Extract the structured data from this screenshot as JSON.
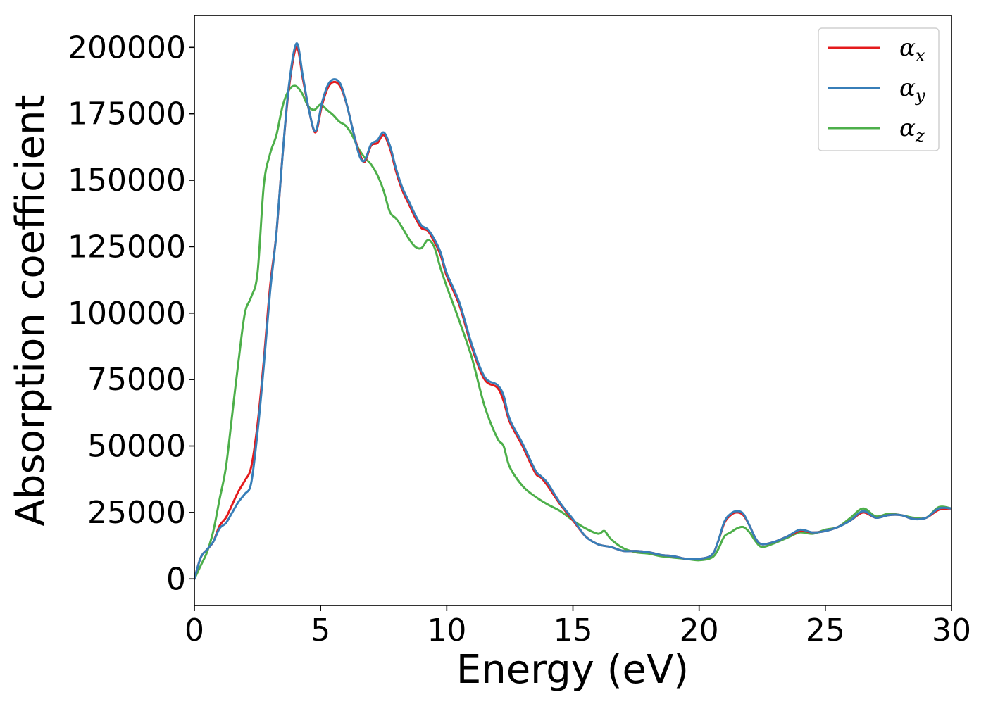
{
  "chart_data": {
    "type": "line",
    "title": "",
    "xlabel": "Energy (eV)",
    "ylabel": "Absorption coefficient",
    "xlim": [
      0,
      30
    ],
    "ylim": [
      -10000,
      212000
    ],
    "xticks": [
      0,
      5,
      10,
      15,
      20,
      25,
      30
    ],
    "yticks": [
      0,
      25000,
      50000,
      75000,
      100000,
      125000,
      150000,
      175000,
      200000
    ],
    "grid": false,
    "legend_position": "top-right",
    "series": [
      {
        "name": "α_x",
        "legend_base": "α",
        "legend_sub": "x",
        "color": "#e41a1c",
        "points": [
          [
            0,
            0
          ],
          [
            0.25,
            8000
          ],
          [
            0.5,
            11000
          ],
          [
            0.75,
            14000
          ],
          [
            1,
            20000
          ],
          [
            1.25,
            23000
          ],
          [
            1.5,
            28000
          ],
          [
            1.75,
            33000
          ],
          [
            2,
            37000
          ],
          [
            2.25,
            42000
          ],
          [
            2.5,
            58000
          ],
          [
            2.75,
            82000
          ],
          [
            3,
            110000
          ],
          [
            3.25,
            130000
          ],
          [
            3.5,
            160000
          ],
          [
            3.75,
            185000
          ],
          [
            4.05,
            200000
          ],
          [
            4.3,
            188000
          ],
          [
            4.55,
            176000
          ],
          [
            4.8,
            168000
          ],
          [
            5.05,
            178000
          ],
          [
            5.3,
            185000
          ],
          [
            5.55,
            187000
          ],
          [
            5.8,
            185000
          ],
          [
            6.05,
            178000
          ],
          [
            6.3,
            168000
          ],
          [
            6.55,
            160000
          ],
          [
            6.75,
            157000
          ],
          [
            7,
            163000
          ],
          [
            7.25,
            164000
          ],
          [
            7.5,
            167000
          ],
          [
            7.75,
            162000
          ],
          [
            8,
            153000
          ],
          [
            8.25,
            146000
          ],
          [
            8.5,
            141000
          ],
          [
            8.75,
            136000
          ],
          [
            9,
            132000
          ],
          [
            9.25,
            131000
          ],
          [
            9.5,
            127000
          ],
          [
            9.75,
            122000
          ],
          [
            10,
            114000
          ],
          [
            10.5,
            103000
          ],
          [
            11,
            87000
          ],
          [
            11.5,
            75000
          ],
          [
            12,
            72000
          ],
          [
            12.25,
            67000
          ],
          [
            12.5,
            59000
          ],
          [
            13,
            50000
          ],
          [
            13.5,
            40000
          ],
          [
            13.75,
            38000
          ],
          [
            14,
            35000
          ],
          [
            14.5,
            28000
          ],
          [
            15,
            22000
          ],
          [
            15.5,
            16000
          ],
          [
            16,
            13000
          ],
          [
            16.5,
            12000
          ],
          [
            17,
            10500
          ],
          [
            17.5,
            10500
          ],
          [
            18,
            10000
          ],
          [
            18.5,
            9000
          ],
          [
            19,
            8500
          ],
          [
            19.5,
            7500
          ],
          [
            20,
            7500
          ],
          [
            20.5,
            9000
          ],
          [
            20.75,
            14000
          ],
          [
            21,
            21000
          ],
          [
            21.25,
            24000
          ],
          [
            21.5,
            25000
          ],
          [
            21.75,
            24000
          ],
          [
            22,
            20000
          ],
          [
            22.25,
            15000
          ],
          [
            22.5,
            13000
          ],
          [
            23,
            14000
          ],
          [
            23.5,
            16000
          ],
          [
            24,
            18000
          ],
          [
            24.5,
            17500
          ],
          [
            25,
            18000
          ],
          [
            25.5,
            19500
          ],
          [
            26,
            22000
          ],
          [
            26.5,
            25000
          ],
          [
            27,
            23000
          ],
          [
            27.5,
            24000
          ],
          [
            28,
            24000
          ],
          [
            28.5,
            22500
          ],
          [
            29,
            23000
          ],
          [
            29.5,
            26000
          ],
          [
            30,
            26500
          ]
        ]
      },
      {
        "name": "α_y",
        "legend_base": "α",
        "legend_sub": "y",
        "color": "#377eb8",
        "points": [
          [
            0,
            0
          ],
          [
            0.25,
            8000
          ],
          [
            0.5,
            11000
          ],
          [
            0.75,
            14000
          ],
          [
            1,
            19000
          ],
          [
            1.25,
            21000
          ],
          [
            1.5,
            25000
          ],
          [
            1.75,
            29000
          ],
          [
            2,
            32000
          ],
          [
            2.25,
            36000
          ],
          [
            2.5,
            55000
          ],
          [
            2.75,
            80000
          ],
          [
            3,
            108000
          ],
          [
            3.25,
            130000
          ],
          [
            3.5,
            160000
          ],
          [
            3.75,
            186000
          ],
          [
            4.05,
            201500
          ],
          [
            4.3,
            189000
          ],
          [
            4.55,
            176000
          ],
          [
            4.8,
            168500
          ],
          [
            5.05,
            179000
          ],
          [
            5.3,
            186000
          ],
          [
            5.55,
            188000
          ],
          [
            5.8,
            186000
          ],
          [
            6.05,
            178000
          ],
          [
            6.3,
            168000
          ],
          [
            6.55,
            159000
          ],
          [
            6.75,
            157500
          ],
          [
            7,
            163500
          ],
          [
            7.25,
            165000
          ],
          [
            7.5,
            168000
          ],
          [
            7.75,
            163000
          ],
          [
            8,
            154000
          ],
          [
            8.25,
            147000
          ],
          [
            8.5,
            142000
          ],
          [
            8.75,
            137000
          ],
          [
            9,
            133000
          ],
          [
            9.25,
            131500
          ],
          [
            9.5,
            128000
          ],
          [
            9.75,
            123000
          ],
          [
            10,
            115000
          ],
          [
            10.5,
            104000
          ],
          [
            11,
            88000
          ],
          [
            11.5,
            76000
          ],
          [
            12,
            73000
          ],
          [
            12.25,
            69000
          ],
          [
            12.5,
            60000
          ],
          [
            13,
            51000
          ],
          [
            13.5,
            41000
          ],
          [
            13.75,
            38500
          ],
          [
            14,
            36000
          ],
          [
            14.5,
            28500
          ],
          [
            15,
            22500
          ],
          [
            15.5,
            16000
          ],
          [
            16,
            13000
          ],
          [
            16.5,
            12000
          ],
          [
            17,
            10500
          ],
          [
            17.5,
            10500
          ],
          [
            18,
            10000
          ],
          [
            18.5,
            9000
          ],
          [
            19,
            8500
          ],
          [
            19.5,
            7500
          ],
          [
            20,
            7500
          ],
          [
            20.5,
            9000
          ],
          [
            20.75,
            14000
          ],
          [
            21,
            21500
          ],
          [
            21.25,
            24500
          ],
          [
            21.5,
            25500
          ],
          [
            21.75,
            24500
          ],
          [
            22,
            20000
          ],
          [
            22.25,
            15000
          ],
          [
            22.5,
            13000
          ],
          [
            23,
            14000
          ],
          [
            23.5,
            16000
          ],
          [
            24,
            18500
          ],
          [
            24.5,
            17500
          ],
          [
            25,
            18000
          ],
          [
            25.5,
            19500
          ],
          [
            26,
            22000
          ],
          [
            26.5,
            25500
          ],
          [
            27,
            23000
          ],
          [
            27.5,
            24000
          ],
          [
            28,
            24000
          ],
          [
            28.5,
            22500
          ],
          [
            29,
            23000
          ],
          [
            29.5,
            26500
          ],
          [
            30,
            26500
          ]
        ]
      },
      {
        "name": "α_z",
        "legend_base": "α",
        "legend_sub": "z",
        "color": "#4daf4a",
        "points": [
          [
            0,
            0
          ],
          [
            0.25,
            5000
          ],
          [
            0.5,
            10000
          ],
          [
            0.75,
            18000
          ],
          [
            1,
            30000
          ],
          [
            1.25,
            42000
          ],
          [
            1.5,
            62000
          ],
          [
            1.75,
            82000
          ],
          [
            2,
            100000
          ],
          [
            2.25,
            106000
          ],
          [
            2.5,
            115000
          ],
          [
            2.75,
            148000
          ],
          [
            3,
            160000
          ],
          [
            3.25,
            167000
          ],
          [
            3.5,
            178000
          ],
          [
            3.75,
            184000
          ],
          [
            4,
            185500
          ],
          [
            4.25,
            183000
          ],
          [
            4.5,
            178000
          ],
          [
            4.75,
            176500
          ],
          [
            5,
            178500
          ],
          [
            5.25,
            176500
          ],
          [
            5.5,
            174500
          ],
          [
            5.75,
            172000
          ],
          [
            6,
            170500
          ],
          [
            6.25,
            167000
          ],
          [
            6.5,
            162000
          ],
          [
            6.75,
            158500
          ],
          [
            7,
            156000
          ],
          [
            7.25,
            152000
          ],
          [
            7.5,
            146000
          ],
          [
            7.75,
            138000
          ],
          [
            8,
            135500
          ],
          [
            8.25,
            132000
          ],
          [
            8.5,
            128000
          ],
          [
            8.75,
            125000
          ],
          [
            9,
            124500
          ],
          [
            9.25,
            127500
          ],
          [
            9.5,
            125000
          ],
          [
            9.75,
            117000
          ],
          [
            10,
            110000
          ],
          [
            10.5,
            97000
          ],
          [
            11,
            83000
          ],
          [
            11.5,
            65000
          ],
          [
            12,
            53000
          ],
          [
            12.25,
            50000
          ],
          [
            12.5,
            42000
          ],
          [
            13,
            35000
          ],
          [
            13.5,
            31000
          ],
          [
            14,
            28000
          ],
          [
            14.5,
            25500
          ],
          [
            15,
            22000
          ],
          [
            15.5,
            19000
          ],
          [
            16,
            17000
          ],
          [
            16.25,
            18000
          ],
          [
            16.5,
            15000
          ],
          [
            17,
            11500
          ],
          [
            17.5,
            10000
          ],
          [
            18,
            9500
          ],
          [
            18.5,
            8500
          ],
          [
            19,
            8000
          ],
          [
            19.5,
            7500
          ],
          [
            20,
            7000
          ],
          [
            20.5,
            8000
          ],
          [
            20.75,
            11000
          ],
          [
            21,
            16000
          ],
          [
            21.25,
            17500
          ],
          [
            21.5,
            19000
          ],
          [
            21.75,
            19500
          ],
          [
            22,
            17500
          ],
          [
            22.25,
            14000
          ],
          [
            22.5,
            12000
          ],
          [
            23,
            13500
          ],
          [
            23.5,
            15500
          ],
          [
            24,
            17500
          ],
          [
            24.5,
            17000
          ],
          [
            25,
            18500
          ],
          [
            25.5,
            19500
          ],
          [
            26,
            23000
          ],
          [
            26.5,
            26500
          ],
          [
            27,
            23500
          ],
          [
            27.5,
            24500
          ],
          [
            28,
            24000
          ],
          [
            28.5,
            23000
          ],
          [
            29,
            23000
          ],
          [
            29.5,
            27000
          ],
          [
            30,
            26500
          ]
        ]
      }
    ]
  }
}
